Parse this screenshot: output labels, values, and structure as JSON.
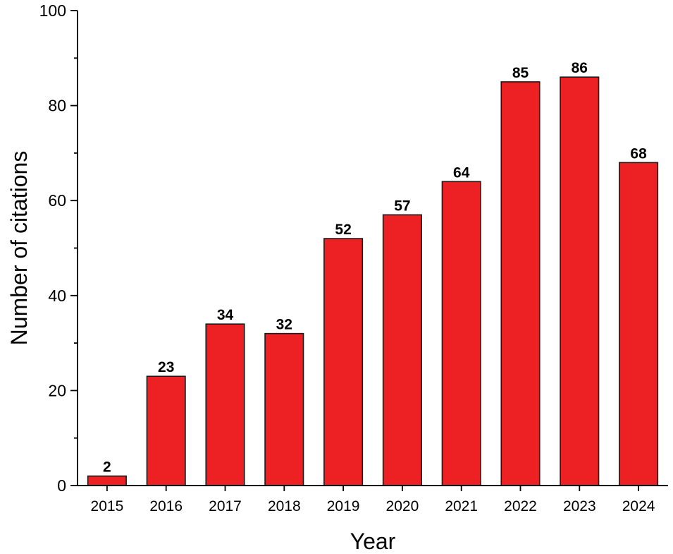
{
  "chart_data": {
    "type": "bar",
    "title": "",
    "xlabel": "Year",
    "ylabel": "Number of citations",
    "categories": [
      "2015",
      "2016",
      "2017",
      "2018",
      "2019",
      "2020",
      "2021",
      "2022",
      "2023",
      "2024"
    ],
    "values": [
      2,
      23,
      34,
      32,
      52,
      57,
      64,
      85,
      86,
      68
    ],
    "data_labels": [
      "2",
      "23",
      "34",
      "32",
      "52",
      "57",
      "64",
      "85",
      "86",
      "68"
    ],
    "ylim": [
      0,
      100
    ],
    "yticks": [
      "0",
      "20",
      "40",
      "60",
      "80",
      "100"
    ],
    "ytick_values": [
      0,
      20,
      40,
      60,
      80,
      100
    ],
    "yminor_step": 10,
    "grid": false,
    "bar_color": "#ED2124",
    "bar_edge_color": "#1a1a1a"
  }
}
